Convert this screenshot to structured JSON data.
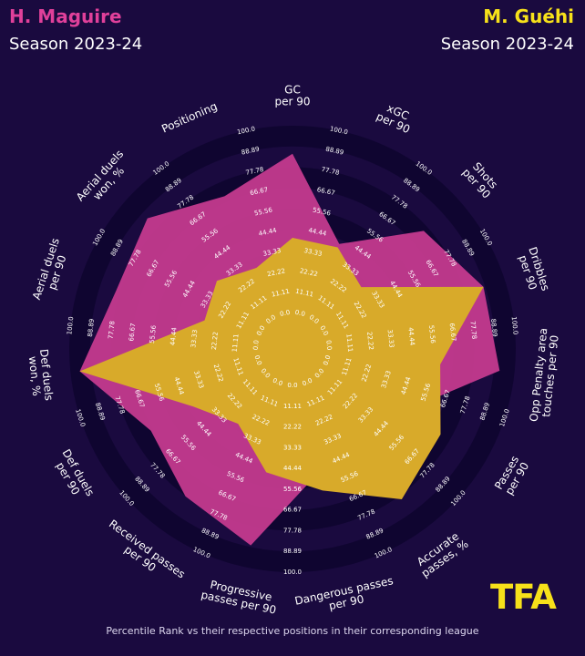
{
  "players": {
    "left": {
      "name": "H. Maguire",
      "season": "Season 2023-24",
      "color": "#e0409a"
    },
    "right": {
      "name": "M. Guéhi",
      "season": "Season 2023-24",
      "color": "#f7e11a"
    }
  },
  "footer": "Percentile Rank vs their respective positions in their corresponding league",
  "logo": "TFA",
  "colors": {
    "background": "#1a0a3f",
    "ring_dark": "#0f0530",
    "maguire_fill": "#c43a8e",
    "guehi_fill": "#d8aa2a",
    "overlap_fill": "#8c9420"
  },
  "chart_data": {
    "type": "radar",
    "categories": [
      "GC\nper 90",
      "xGC\nper 90",
      "Shots\nper 90",
      "Dribbles\nper 90",
      "Opp Penalty area\ntouches per 90",
      "Passes\nper 90",
      "Accurate\npasses, %",
      "Dangerous passes\nper 90",
      "Progressive\npasses per 90",
      "Received passes\nper 90",
      "Def duels\nper 90",
      "Def duels\nwon, %",
      "Aerial duels\nper 90",
      "Aerial duels\nwon, %",
      "Positioning"
    ],
    "ticks": [
      "0.0",
      "11.11",
      "22.22",
      "33.33",
      "44.44",
      "55.56",
      "66.67",
      "77.78",
      "88.89",
      "100.0"
    ],
    "range": [
      0,
      100
    ],
    "series": [
      {
        "name": "H. Maguire",
        "values": [
          85,
          42,
          75,
          88,
          92,
          48,
          55,
          48,
          88,
          78,
          68,
          95,
          80,
          85,
          70
        ]
      },
      {
        "name": "M. Guéhi",
        "values": [
          40,
          40,
          30,
          88,
          60,
          72,
          80,
          58,
          48,
          30,
          42,
          95,
          30,
          35,
          28
        ]
      }
    ]
  }
}
